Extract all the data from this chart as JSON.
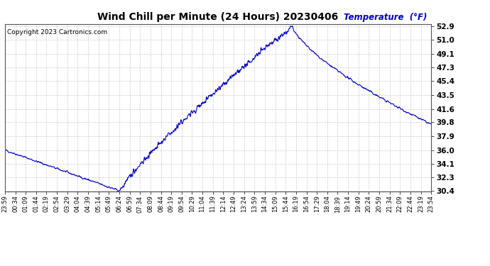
{
  "title": "Wind Chill per Minute (24 Hours) 20230406",
  "copyright": "Copyright 2023 Cartronics.com",
  "ylabel": "Temperature  (°F)",
  "yticks": [
    30.4,
    32.3,
    34.1,
    36.0,
    37.9,
    39.8,
    41.6,
    43.5,
    45.4,
    47.3,
    49.1,
    51.0,
    52.9
  ],
  "ymin": 30.4,
  "ymax": 52.9,
  "line_color": "#0000cc",
  "bg_color": "#ffffff",
  "grid_color": "#cccccc",
  "title_color": "#000000",
  "ylabel_color": "#0000cc",
  "copyright_color": "#000000",
  "xtick_labels": [
    "23:59",
    "00:34",
    "01:09",
    "01:44",
    "02:19",
    "02:54",
    "03:29",
    "04:04",
    "04:39",
    "05:14",
    "05:49",
    "06:24",
    "06:59",
    "07:34",
    "08:09",
    "08:44",
    "09:19",
    "09:54",
    "10:29",
    "11:04",
    "11:39",
    "12:14",
    "12:49",
    "13:24",
    "13:59",
    "14:34",
    "15:09",
    "15:44",
    "16:19",
    "16:54",
    "17:29",
    "18:04",
    "18:39",
    "19:14",
    "19:49",
    "20:24",
    "20:59",
    "21:34",
    "22:09",
    "22:44",
    "23:19",
    "23:54"
  ],
  "figsize": [
    6.9,
    3.75
  ],
  "dpi": 100
}
